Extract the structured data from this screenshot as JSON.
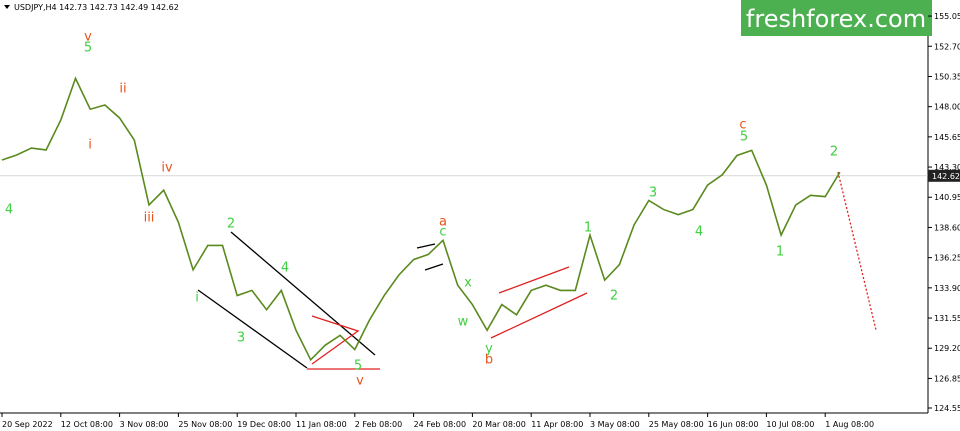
{
  "chart_data": {
    "type": "line",
    "title": "USDJPY,H4 142.73 142.73 142.49 142.62",
    "watermark": "freshforex.com",
    "current_price": {
      "value": 142.62,
      "label": "142.62"
    },
    "color": "#5a8a1e",
    "categories": [
      "20 Sep 2022",
      null,
      null,
      null,
      "12 Oct 08:00",
      null,
      null,
      null,
      "3 Nov 08:00",
      null,
      null,
      null,
      "25 Nov 08:00",
      null,
      null,
      null,
      "19 Dec 08:00",
      null,
      null,
      null,
      "11 Jan 08:00",
      null,
      null,
      null,
      "2 Feb 08:00",
      null,
      null,
      null,
      "24 Feb 08:00",
      null,
      null,
      null,
      "20 Mar 08:00",
      null,
      null,
      null,
      "11 Apr 08:00",
      null,
      null,
      null,
      "3 May 08:00",
      null,
      null,
      null,
      "25 May 08:00",
      null,
      null,
      null,
      "16 Jun 08:00",
      null,
      null,
      null,
      "10 Jul 08:00",
      null,
      null,
      null,
      "1 Aug 08:00",
      null
    ],
    "values": [
      143.85,
      144.24,
      144.78,
      144.63,
      146.96,
      150.2,
      147.8,
      148.13,
      147.12,
      145.4,
      140.35,
      141.5,
      139.0,
      135.3,
      137.2,
      137.2,
      133.3,
      133.7,
      132.2,
      133.7,
      130.6,
      128.3,
      129.45,
      130.2,
      129.1,
      131.4,
      133.3,
      134.9,
      136.1,
      136.5,
      137.6,
      134.1,
      132.6,
      130.6,
      132.6,
      131.8,
      133.7,
      134.1,
      133.7,
      133.7,
      138.0,
      134.5,
      135.7,
      138.8,
      140.7,
      140.0,
      139.6,
      140.0,
      141.9,
      142.7,
      144.2,
      144.6,
      141.9,
      138.0,
      140.35,
      141.1,
      141.0,
      142.9
    ],
    "ylim": [
      124.16,
      156.3
    ],
    "yticks": [
      155.05,
      {
        "value": 152.7,
        "label": "152.70"
      },
      150.35,
      {
        "value": 148.0,
        "label": "148.00"
      },
      145.65,
      {
        "value": 143.3,
        "label": "143.30"
      },
      140.95,
      {
        "value": 138.6,
        "label": "138.60"
      },
      136.25,
      {
        "value": 133.9,
        "label": "133.90"
      },
      131.55,
      {
        "value": 129.2,
        "label": "129.20"
      },
      126.85,
      124.55
    ],
    "annotations": [
      {
        "text": "v",
        "color": "#e8541a"
      },
      {
        "text": "5",
        "color": "#3fd13f"
      },
      {
        "text": "ii",
        "color": "#e8541a"
      },
      {
        "text": "i",
        "color": "#e8541a"
      },
      {
        "text": "iv",
        "color": "#e8541a"
      },
      {
        "text": "iii",
        "color": "#e8541a"
      },
      {
        "text": "4",
        "color": "#3fd13f"
      },
      {
        "text": "i",
        "color": "#3fd13f"
      },
      {
        "text": "2",
        "color": "#3fd13f"
      },
      {
        "text": "3",
        "color": "#3fd13f"
      },
      {
        "text": "4",
        "color": "#3fd13f"
      },
      {
        "text": "5",
        "color": "#3fd13f"
      },
      {
        "text": "v",
        "color": "#e8541a"
      },
      {
        "text": "a",
        "color": "#e8541a"
      },
      {
        "text": "c",
        "color": "#3fd13f"
      },
      {
        "text": "x",
        "color": "#3fd13f"
      },
      {
        "text": "w",
        "color": "#3fd13f"
      },
      {
        "text": "y",
        "color": "#3fd13f"
      },
      {
        "text": "b",
        "color": "#e8541a"
      },
      {
        "text": "1",
        "color": "#3fd13f"
      },
      {
        "text": "2",
        "color": "#3fd13f"
      },
      {
        "text": "3",
        "color": "#3fd13f"
      },
      {
        "text": "4",
        "color": "#3fd13f"
      },
      {
        "text": "5",
        "color": "#3fd13f"
      },
      {
        "text": "c",
        "color": "#e8541a"
      },
      {
        "text": "1",
        "color": "#3fd13f"
      },
      {
        "text": "2",
        "color": "#3fd13f"
      }
    ]
  }
}
